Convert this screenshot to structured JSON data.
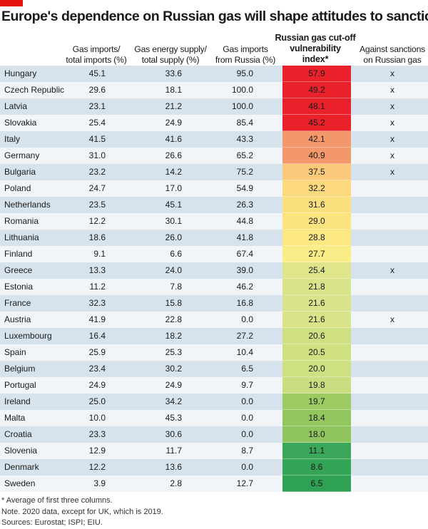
{
  "title": "Europe's dependence on Russian gas will shape attitudes to sanctions",
  "brand_color": "#e3120b",
  "headers": {
    "gas_imports_total": [
      "Gas imports/",
      "total imports (%)"
    ],
    "gas_energy_supply": [
      "Gas energy supply/",
      "total supply (%)"
    ],
    "gas_imports_russia": [
      "Gas imports",
      "from Russia (%)"
    ],
    "vulnerability_index": [
      "Russian gas cut-off",
      "vulnerability",
      "index*"
    ],
    "against_sanctions": [
      "Against sanctions",
      "on Russian gas"
    ]
  },
  "rows": [
    {
      "country": "Hungary",
      "imports_total": "45.1",
      "energy_supply": "33.6",
      "from_russia": "95.0",
      "index": "57.9",
      "against": "x",
      "color": "#e8212b"
    },
    {
      "country": "Czech Republic",
      "imports_total": "29.6",
      "energy_supply": "18.1",
      "from_russia": "100.0",
      "index": "49.2",
      "against": "x",
      "color": "#e8212b"
    },
    {
      "country": "Latvia",
      "imports_total": "23.1",
      "energy_supply": "21.2",
      "from_russia": "100.0",
      "index": "48.1",
      "against": "x",
      "color": "#e8212b"
    },
    {
      "country": "Slovakia",
      "imports_total": "25.4",
      "energy_supply": "24.9",
      "from_russia": "85.4",
      "index": "45.2",
      "against": "x",
      "color": "#e8212b"
    },
    {
      "country": "Italy",
      "imports_total": "41.5",
      "energy_supply": "41.6",
      "from_russia": "43.3",
      "index": "42.1",
      "against": "x",
      "color": "#f3986a"
    },
    {
      "country": "Germany",
      "imports_total": "31.0",
      "energy_supply": "26.6",
      "from_russia": "65.2",
      "index": "40.9",
      "against": "x",
      "color": "#f3986a"
    },
    {
      "country": "Bulgaria",
      "imports_total": "23.2",
      "energy_supply": "14.2",
      "from_russia": "75.2",
      "index": "37.5",
      "against": "x",
      "color": "#fbc97a"
    },
    {
      "country": "Poland",
      "imports_total": "24.7",
      "energy_supply": "17.0",
      "from_russia": "54.9",
      "index": "32.2",
      "against": "",
      "color": "#fcd97c"
    },
    {
      "country": "Netherlands",
      "imports_total": "23.5",
      "energy_supply": "45.1",
      "from_russia": "26.3",
      "index": "31.6",
      "against": "",
      "color": "#fce07e"
    },
    {
      "country": "Romania",
      "imports_total": "12.2",
      "energy_supply": "30.1",
      "from_russia": "44.8",
      "index": "29.0",
      "against": "",
      "color": "#fbe47f"
    },
    {
      "country": "Lithuania",
      "imports_total": "18.6",
      "energy_supply": "26.0",
      "from_russia": "41.8",
      "index": "28.8",
      "against": "",
      "color": "#fbe883"
    },
    {
      "country": "Finland",
      "imports_total": "9.1",
      "energy_supply": "6.6",
      "from_russia": "67.4",
      "index": "27.7",
      "against": "",
      "color": "#faec86"
    },
    {
      "country": "Greece",
      "imports_total": "13.3",
      "energy_supply": "24.0",
      "from_russia": "39.0",
      "index": "25.4",
      "against": "x",
      "color": "#dfe58a"
    },
    {
      "country": "Estonia",
      "imports_total": "11.2",
      "energy_supply": "7.8",
      "from_russia": "46.2",
      "index": "21.8",
      "against": "",
      "color": "#d8e38a"
    },
    {
      "country": "France",
      "imports_total": "32.3",
      "energy_supply": "15.8",
      "from_russia": "16.8",
      "index": "21.6",
      "against": "",
      "color": "#d8e38a"
    },
    {
      "country": "Austria",
      "imports_total": "41.9",
      "energy_supply": "22.8",
      "from_russia": "0.0",
      "index": "21.6",
      "against": "x",
      "color": "#d8e38a"
    },
    {
      "country": "Luxembourg",
      "imports_total": "16.4",
      "energy_supply": "18.2",
      "from_russia": "27.2",
      "index": "20.6",
      "against": "",
      "color": "#cfe083"
    },
    {
      "country": "Spain",
      "imports_total": "25.9",
      "energy_supply": "25.3",
      "from_russia": "10.4",
      "index": "20.5",
      "against": "",
      "color": "#cfe083"
    },
    {
      "country": "Belgium",
      "imports_total": "23.4",
      "energy_supply": "30.2",
      "from_russia": "6.5",
      "index": "20.0",
      "against": "",
      "color": "#cde082"
    },
    {
      "country": "Portugal",
      "imports_total": "24.9",
      "energy_supply": "24.9",
      "from_russia": "9.7",
      "index": "19.8",
      "against": "",
      "color": "#c9de80"
    },
    {
      "country": "Ireland",
      "imports_total": "25.0",
      "energy_supply": "34.2",
      "from_russia": "0.0",
      "index": "19.7",
      "against": "",
      "color": "#9cca63"
    },
    {
      "country": "Malta",
      "imports_total": "10.0",
      "energy_supply": "45.3",
      "from_russia": "0.0",
      "index": "18.4",
      "against": "",
      "color": "#94c660"
    },
    {
      "country": "Croatia",
      "imports_total": "23.3",
      "energy_supply": "30.6",
      "from_russia": "0.0",
      "index": "18.0",
      "against": "",
      "color": "#8fc45e"
    },
    {
      "country": "Slovenia",
      "imports_total": "12.9",
      "energy_supply": "11.7",
      "from_russia": "8.7",
      "index": "11.1",
      "against": "",
      "color": "#3aa75a"
    },
    {
      "country": "Denmark",
      "imports_total": "12.2",
      "energy_supply": "13.6",
      "from_russia": "0.0",
      "index": "8.6",
      "against": "",
      "color": "#34a456"
    },
    {
      "country": "Sweden",
      "imports_total": "3.9",
      "energy_supply": "2.8",
      "from_russia": "12.7",
      "index": "6.5",
      "against": "",
      "color": "#2ea154"
    }
  ],
  "footer": {
    "note1": "* Average of first three columns.",
    "note2": "Note. 2020 data, except for UK, which is 2019.",
    "sources": "Sources: Eurostat; ISPI; EIU."
  }
}
